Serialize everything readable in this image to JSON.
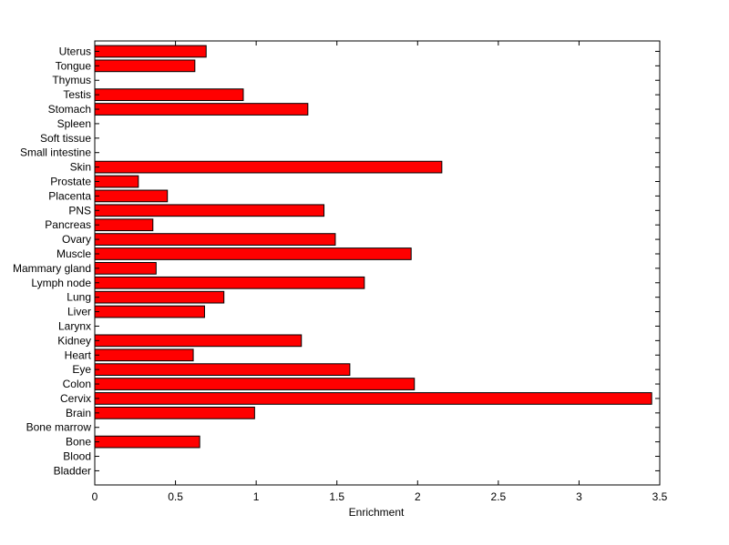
{
  "chart_data": {
    "type": "bar",
    "orientation": "horizontal",
    "title": "",
    "xlabel": "Enrichment",
    "ylabel": "",
    "xlim": [
      0,
      3.5
    ],
    "xticks": [
      0,
      0.5,
      1,
      1.5,
      2,
      2.5,
      3,
      3.5
    ],
    "xtick_labels": [
      "0",
      "0.5",
      "1",
      "1.5",
      "2",
      "2.5",
      "3",
      "3.5"
    ],
    "grid": false,
    "bar_color": "#ff0000",
    "bar_edge_color": "#000000",
    "categories": [
      "Bladder",
      "Blood",
      "Bone",
      "Bone marrow",
      "Brain",
      "Cervix",
      "Colon",
      "Eye",
      "Heart",
      "Kidney",
      "Larynx",
      "Liver",
      "Lung",
      "Lymph node",
      "Mammary gland",
      "Muscle",
      "Ovary",
      "Pancreas",
      "PNS",
      "Placenta",
      "Prostate",
      "Skin",
      "Small intestine",
      "Soft tissue",
      "Spleen",
      "Stomach",
      "Testis",
      "Thymus",
      "Tongue",
      "Uterus"
    ],
    "values": [
      0,
      0,
      0.65,
      0,
      0.99,
      3.45,
      1.98,
      1.58,
      0.61,
      1.28,
      0,
      0.68,
      0.8,
      1.67,
      0.38,
      1.96,
      1.49,
      0.36,
      1.42,
      0.45,
      0.27,
      2.15,
      0,
      0,
      0,
      1.32,
      0.92,
      0,
      0.62,
      0.69
    ]
  }
}
